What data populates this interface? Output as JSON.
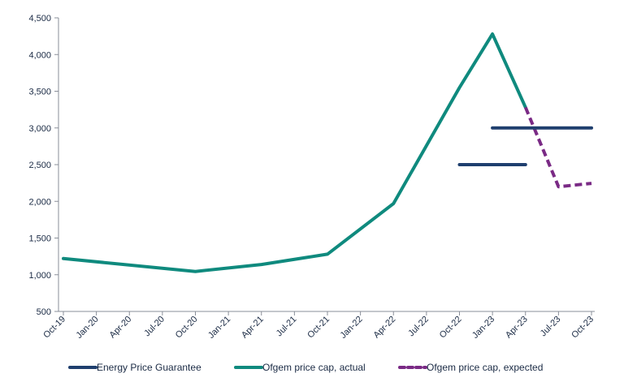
{
  "chart_data": {
    "type": "line",
    "x": [
      "Oct-19",
      "Jan-20",
      "Apr-20",
      "Jul-20",
      "Oct-20",
      "Jan-21",
      "Apr-21",
      "Jul-21",
      "Oct-21",
      "Jan-22",
      "Apr-22",
      "Jul-22",
      "Oct-22",
      "Jan-23",
      "Apr-23",
      "Jul-23",
      "Oct-23"
    ],
    "ylim": [
      500,
      4500
    ],
    "yticks": [
      500,
      1000,
      1500,
      2000,
      2500,
      3000,
      3500,
      4000,
      4500
    ],
    "ytick_labels": [
      "500",
      "1,000",
      "1,500",
      "2,000",
      "2,500",
      "3,000",
      "3,500",
      "4,000",
      "4,500"
    ],
    "grid": false,
    "legend_position": "bottom",
    "series": [
      {
        "name": "Energy Price Guarantee",
        "color": "#1f3f6e",
        "style": "solid",
        "segments": [
          [
            {
              "x": "Oct-22",
              "y": 2500
            },
            {
              "x": "Apr-23",
              "y": 2500
            }
          ],
          [
            {
              "x": "Jan-23",
              "y": 3000
            },
            {
              "x": "Oct-23",
              "y": 3000
            }
          ]
        ]
      },
      {
        "name": "Ofgem price cap, actual",
        "color": "#0f8a7e",
        "style": "solid",
        "segments": [
          [
            {
              "x": "Oct-19",
              "y": 1220
            },
            {
              "x": "Oct-20",
              "y": 1045
            },
            {
              "x": "Apr-21",
              "y": 1140
            },
            {
              "x": "Oct-21",
              "y": 1280
            },
            {
              "x": "Apr-22",
              "y": 1970
            },
            {
              "x": "Oct-22",
              "y": 3550
            },
            {
              "x": "Jan-23",
              "y": 4280
            },
            {
              "x": "Apr-23",
              "y": 3280
            }
          ]
        ]
      },
      {
        "name": "Ofgem price cap, expected",
        "color": "#7a2a85",
        "style": "dashed",
        "segments": [
          [
            {
              "x": "Apr-23",
              "y": 3280
            },
            {
              "x": "Jul-23",
              "y": 2200
            },
            {
              "x": "Oct-23",
              "y": 2245
            }
          ]
        ]
      }
    ]
  }
}
